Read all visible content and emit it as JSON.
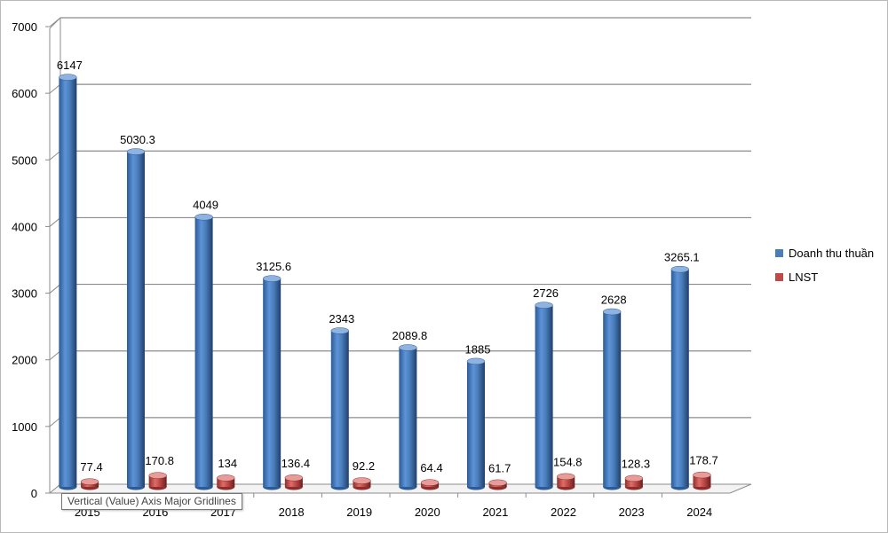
{
  "chart_data": {
    "type": "bar",
    "categories": [
      "2015",
      "2016",
      "2017",
      "2018",
      "2019",
      "2020",
      "2021",
      "2022",
      "2023",
      "2024"
    ],
    "series": [
      {
        "name": "Doanh thu thuần",
        "values": [
          6147,
          5030.3,
          4049,
          3125.6,
          2343,
          2089.8,
          1885,
          2726,
          2628,
          3265.1
        ],
        "labels": [
          "6147",
          "5030.3",
          "4049",
          "3125.6",
          "2343",
          "2089.8",
          "1885",
          "2726",
          "2628",
          "3265.1"
        ],
        "color": "#4a7ebb"
      },
      {
        "name": "LNST",
        "values": [
          77.4,
          170.8,
          134,
          136.4,
          92.2,
          64.4,
          61.7,
          154.8,
          128.3,
          178.7
        ],
        "labels": [
          "77.4",
          "170.8",
          "134",
          "136.4",
          "92.2",
          "64.4",
          "61.7",
          "154.8",
          "128.3",
          "178.7"
        ],
        "color": "#be4b48"
      }
    ],
    "yticks": [
      "0",
      "1000",
      "2000",
      "3000",
      "4000",
      "5000",
      "6000",
      "7000"
    ],
    "ylim": [
      0,
      7000
    ],
    "grid": true,
    "legend": "right",
    "style": "3d-cylinder"
  },
  "tooltip": "Vertical (Value) Axis Major Gridlines"
}
